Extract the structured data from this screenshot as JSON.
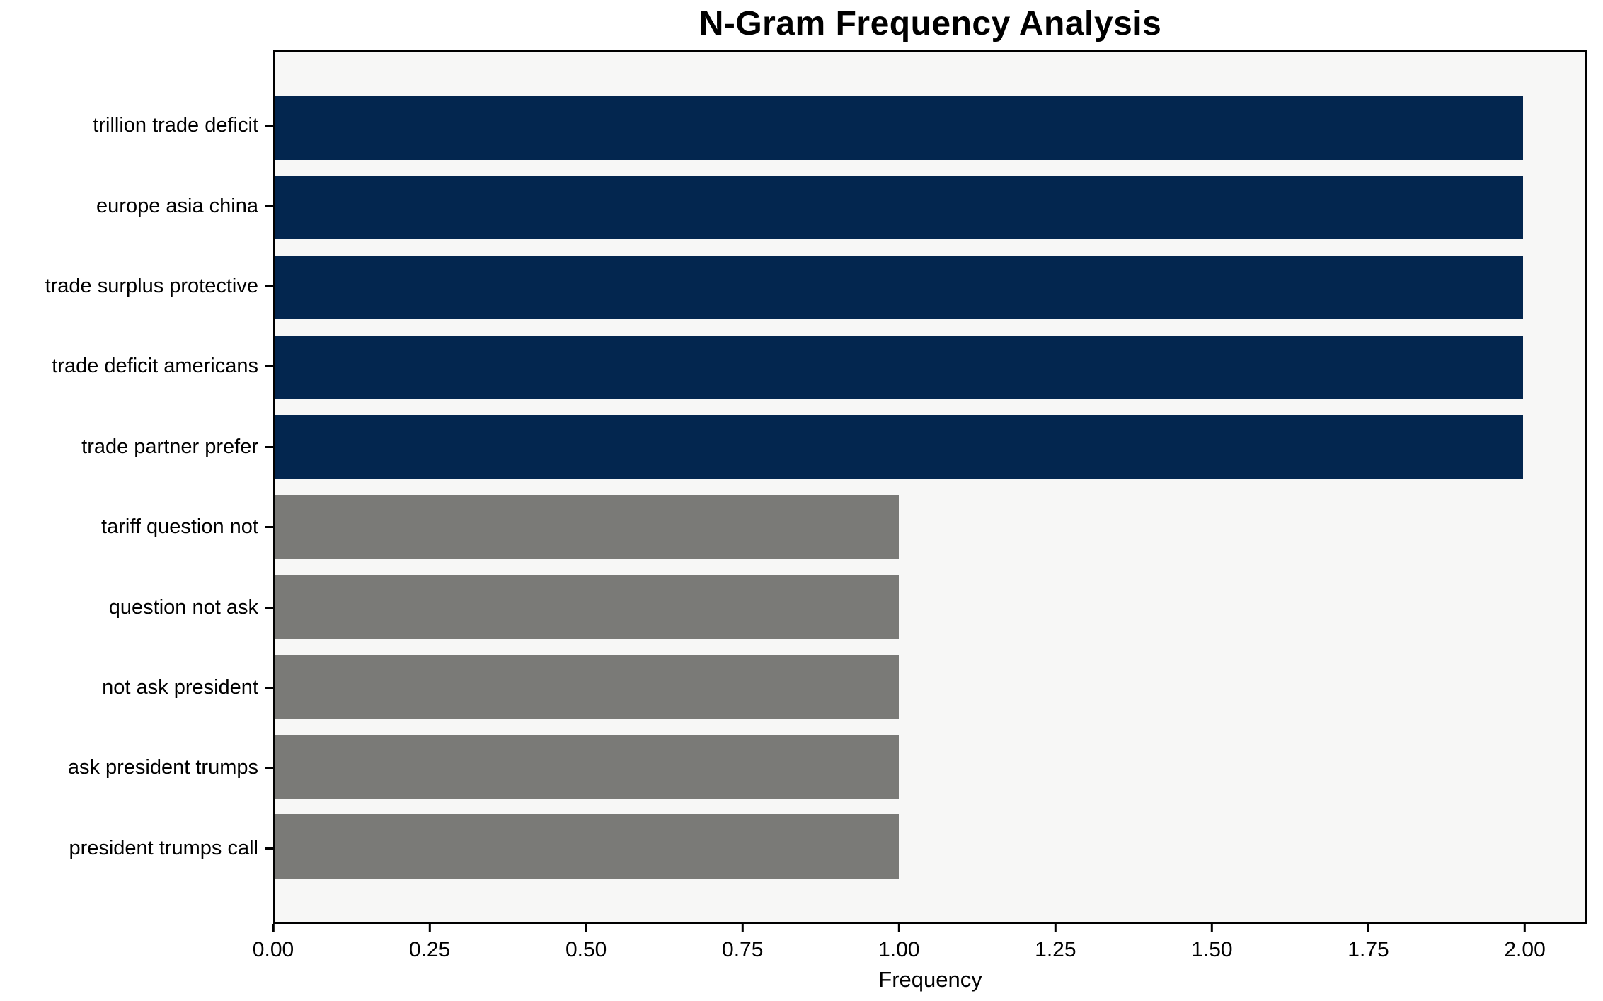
{
  "chart_data": {
    "type": "bar",
    "orientation": "horizontal",
    "title": "N-Gram Frequency Analysis",
    "xlabel": "Frequency",
    "ylabel": "",
    "categories": [
      "trillion trade deficit",
      "europe asia china",
      "trade surplus protective",
      "trade deficit americans",
      "trade partner prefer",
      "tariff question not",
      "question not ask",
      "not ask president",
      "ask president trumps",
      "president trumps call"
    ],
    "values": [
      2,
      2,
      2,
      2,
      2,
      1,
      1,
      1,
      1,
      1
    ],
    "bar_colors": [
      "#03264f",
      "#03264f",
      "#03264f",
      "#03264f",
      "#03264f",
      "#7a7a77",
      "#7a7a77",
      "#7a7a77",
      "#7a7a77",
      "#7a7a77"
    ],
    "xlim": [
      0,
      2.1
    ],
    "xticks": [
      0,
      0.25,
      0.5,
      0.75,
      1.0,
      1.25,
      1.5,
      1.75,
      2.0
    ],
    "xtick_labels": [
      "0.00",
      "0.25",
      "0.50",
      "0.75",
      "1.00",
      "1.25",
      "1.50",
      "1.75",
      "2.00"
    ],
    "grid": false,
    "legend": "none",
    "bar_height_fraction": 0.8,
    "colors": {
      "highlight": "#03264f",
      "muted": "#7a7a77",
      "plot_background": "#f7f7f6",
      "figure_background": "#ffffff",
      "spine": "#000000",
      "text": "#000000"
    }
  }
}
